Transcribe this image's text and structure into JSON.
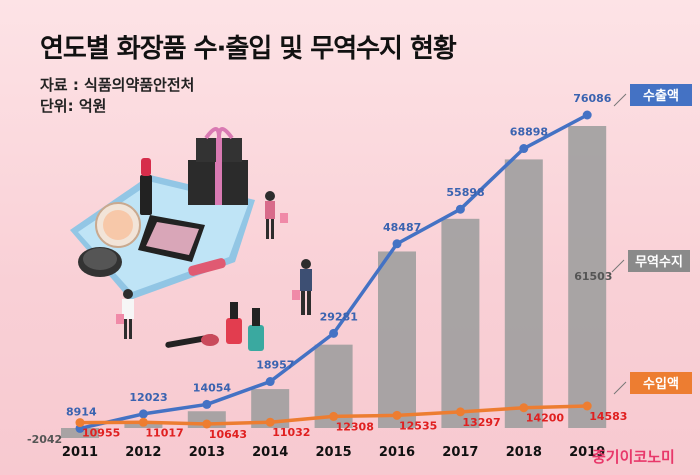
{
  "chart_data": {
    "type": "bar",
    "title": "연도별 화장품 수·출입 및 무역수지 현황",
    "source": "자료 : 식품의약품안전처",
    "unit": "단위: 억원",
    "categories": [
      "2011",
      "2012",
      "2013",
      "2014",
      "2015",
      "2016",
      "2017",
      "2018",
      "2019"
    ],
    "series": [
      {
        "name": "수출액",
        "type": "line",
        "color": "#4472c4",
        "values": [
          8914,
          12023,
          14054,
          18957,
          29281,
          48487,
          55898,
          68898,
          76086
        ]
      },
      {
        "name": "무역수지",
        "type": "bar",
        "color": "#9e9e9e",
        "values": [
          -2042,
          null,
          null,
          null,
          null,
          null,
          null,
          null,
          61503
        ]
      },
      {
        "name": "수입액",
        "type": "line",
        "color": "#ed7d31",
        "values": [
          10955,
          11017,
          10643,
          11032,
          12308,
          12535,
          13297,
          14200,
          14583
        ]
      }
    ],
    "grid": false
  },
  "credit": "중기이코노미"
}
